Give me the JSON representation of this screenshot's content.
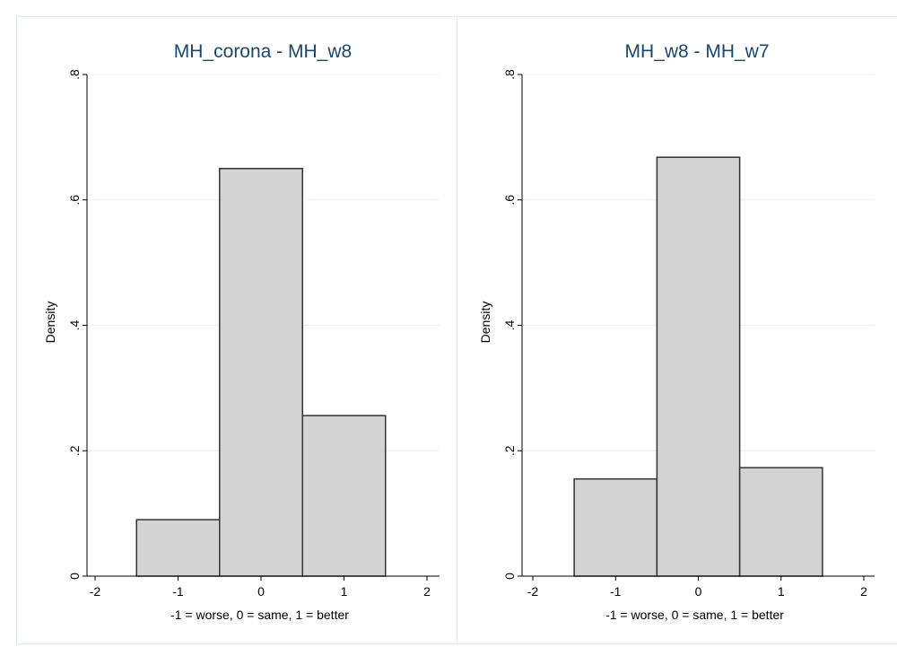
{
  "chart_data": [
    {
      "type": "bar",
      "title": "MH_corona - MH_w8",
      "xlabel": "-1 = worse, 0 = same, 1 = better",
      "ylabel": "Density",
      "xlim": [
        -2,
        2
      ],
      "ylim": [
        0,
        0.8
      ],
      "xticks": [
        "-2",
        "-1",
        "0",
        "1",
        "2"
      ],
      "yticks": [
        "0",
        ".2",
        ".4",
        ".6",
        ".8"
      ],
      "bin_width": 1,
      "categories": [
        -1,
        0,
        1
      ],
      "values": [
        0.09,
        0.65,
        0.256
      ],
      "grid": true,
      "bar_color": "#d3d3d3",
      "bar_edge_color": "#333333"
    },
    {
      "type": "bar",
      "title": "MH_w8 - MH_w7",
      "xlabel": "-1 = worse, 0 = same, 1 = better",
      "ylabel": "Density",
      "xlim": [
        -2,
        2
      ],
      "ylim": [
        0,
        0.8
      ],
      "xticks": [
        "-2",
        "-1",
        "0",
        "1",
        "2"
      ],
      "yticks": [
        "0",
        ".2",
        ".4",
        ".6",
        ".8"
      ],
      "bin_width": 1,
      "categories": [
        -1,
        0,
        1
      ],
      "values": [
        0.155,
        0.668,
        0.173
      ],
      "grid": true,
      "bar_color": "#d3d3d3",
      "bar_edge_color": "#333333"
    }
  ]
}
